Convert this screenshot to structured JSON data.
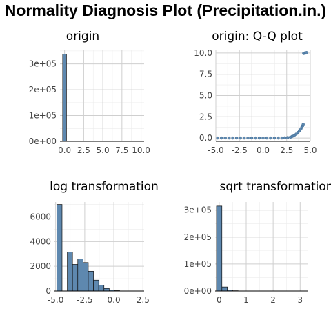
{
  "title": "Normality Diagnosis Plot (Precipitation.in.)",
  "bar_fill": "#5e88af",
  "chart_data": [
    {
      "id": "origin",
      "type": "bar",
      "title": "origin",
      "x_ticks": [
        "0.0",
        "2.5",
        "5.0",
        "7.5",
        "10.0"
      ],
      "y_ticks": [
        "0e+00",
        "1e+05",
        "2e+05",
        "3e+05"
      ],
      "xlim": [
        -0.6,
        10.4
      ],
      "ylim": [
        0,
        355000
      ],
      "bins": [
        {
          "x0": -0.25,
          "x1": 0.25,
          "value": 338000
        }
      ]
    },
    {
      "id": "qq",
      "type": "scatter",
      "title": "origin: Q-Q plot",
      "x_ticks": [
        "-5.0",
        "-2.5",
        "0.0",
        "2.5",
        "5.0"
      ],
      "y_ticks": [
        "0.0",
        "2.5",
        "5.0",
        "7.5",
        "10.0"
      ],
      "xlim": [
        -5.0,
        5.0
      ],
      "ylim": [
        -0.4,
        10.4
      ],
      "points": [
        [
          -4.8,
          0.0
        ],
        [
          -4.4,
          0.0
        ],
        [
          -4.0,
          0.0
        ],
        [
          -3.6,
          0.0
        ],
        [
          -3.2,
          0.0
        ],
        [
          -2.8,
          0.0
        ],
        [
          -2.4,
          0.0
        ],
        [
          -2.0,
          0.0
        ],
        [
          -1.6,
          0.0
        ],
        [
          -1.2,
          0.0
        ],
        [
          -0.8,
          0.0
        ],
        [
          -0.4,
          0.0
        ],
        [
          0.0,
          0.0
        ],
        [
          0.4,
          0.0
        ],
        [
          0.8,
          0.0
        ],
        [
          1.2,
          0.0
        ],
        [
          1.6,
          0.0
        ],
        [
          2.0,
          0.0
        ],
        [
          2.3,
          0.02
        ],
        [
          2.6,
          0.05
        ],
        [
          2.9,
          0.1
        ],
        [
          3.1,
          0.2
        ],
        [
          3.3,
          0.3
        ],
        [
          3.5,
          0.45
        ],
        [
          3.7,
          0.65
        ],
        [
          3.85,
          0.85
        ],
        [
          4.0,
          1.05
        ],
        [
          4.1,
          1.25
        ],
        [
          4.2,
          1.45
        ],
        [
          4.25,
          1.6
        ],
        [
          4.3,
          9.95
        ],
        [
          4.4,
          10.0
        ],
        [
          4.5,
          10.0
        ],
        [
          4.6,
          10.05
        ]
      ]
    },
    {
      "id": "log",
      "type": "bar",
      "title": "log transformation",
      "x_ticks": [
        "-5.0",
        "-2.5",
        "0.0",
        "2.5"
      ],
      "y_ticks": [
        "0",
        "2000",
        "4000",
        "6000"
      ],
      "xlim": [
        -5.1,
        2.6
      ],
      "ylim": [
        0,
        7200
      ],
      "bins": [
        {
          "x0": -4.9,
          "x1": -4.45,
          "value": 7000
        },
        {
          "x0": -4.45,
          "x1": -4.0,
          "value": 0
        },
        {
          "x0": -4.0,
          "x1": -3.55,
          "value": 3150
        },
        {
          "x0": -3.55,
          "x1": -3.1,
          "value": 2150
        },
        {
          "x0": -3.1,
          "x1": -2.65,
          "value": 2600
        },
        {
          "x0": -2.65,
          "x1": -2.2,
          "value": 2300
        },
        {
          "x0": -2.2,
          "x1": -1.75,
          "value": 1600
        },
        {
          "x0": -1.75,
          "x1": -1.3,
          "value": 880
        },
        {
          "x0": -1.3,
          "x1": -0.85,
          "value": 480
        },
        {
          "x0": -0.85,
          "x1": -0.4,
          "value": 210
        },
        {
          "x0": -0.4,
          "x1": 0.05,
          "value": 90
        },
        {
          "x0": 0.05,
          "x1": 0.5,
          "value": 30
        }
      ]
    },
    {
      "id": "sqrt",
      "type": "bar",
      "title": "sqrt transformation",
      "x_ticks": [
        "0",
        "1",
        "2",
        "3"
      ],
      "y_ticks": [
        "0e+00",
        "1e+05",
        "2e+05",
        "3e+05"
      ],
      "xlim": [
        -0.15,
        3.3
      ],
      "ylim": [
        0,
        330000
      ],
      "bins": [
        {
          "x0": -0.1,
          "x1": 0.1,
          "value": 315000
        },
        {
          "x0": 0.1,
          "x1": 0.3,
          "value": 15000
        },
        {
          "x0": 0.3,
          "x1": 0.5,
          "value": 4000
        },
        {
          "x0": 0.5,
          "x1": 0.7,
          "value": 1000
        }
      ]
    }
  ]
}
